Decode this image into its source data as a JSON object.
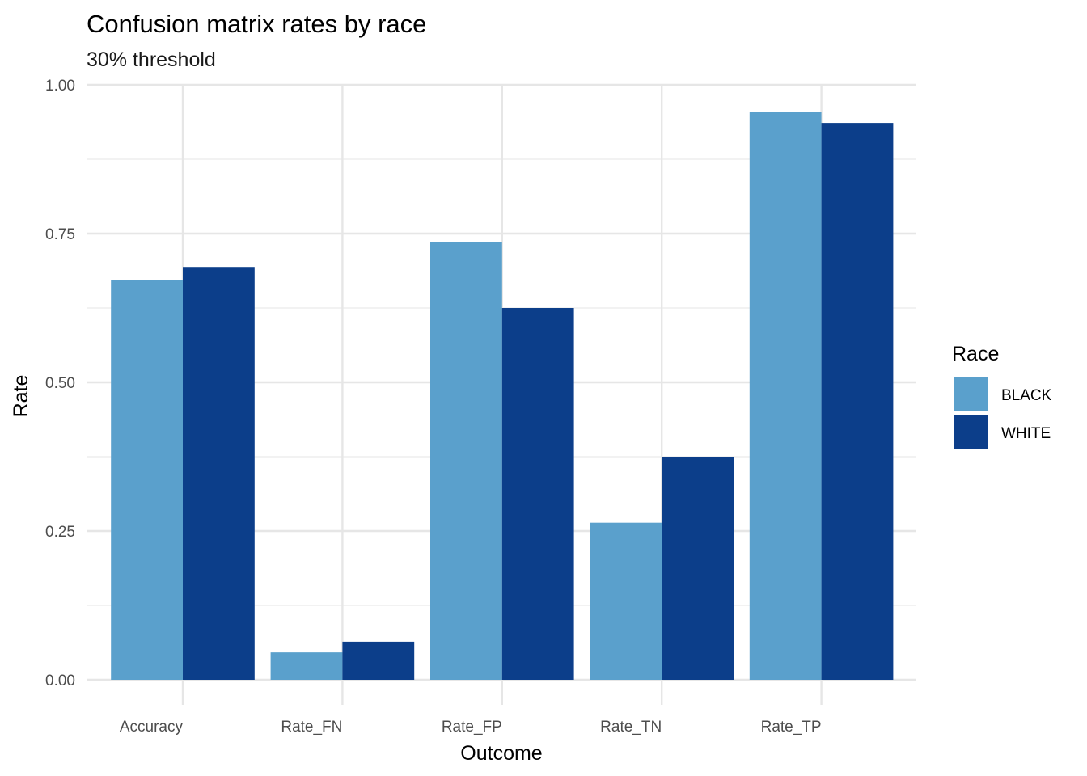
{
  "chart_data": {
    "type": "bar",
    "title": "Confusion matrix rates by race",
    "subtitle": "30% threshold",
    "xlabel": "Outcome",
    "ylabel": "Rate",
    "categories": [
      "Accuracy",
      "Rate_FN",
      "Rate_FP",
      "Rate_TN",
      "Rate_TP"
    ],
    "series": [
      {
        "name": "BLACK",
        "color": "#5aa0cc",
        "values": [
          0.672,
          0.046,
          0.736,
          0.264,
          0.954
        ]
      },
      {
        "name": "WHITE",
        "color": "#0c3e8a",
        "values": [
          0.694,
          0.064,
          0.625,
          0.375,
          0.936
        ]
      }
    ],
    "ylim": [
      0,
      1
    ],
    "yticks": [
      "0.00",
      "0.25",
      "0.50",
      "0.75",
      "1.00"
    ],
    "grid": true,
    "legend": {
      "title": "Race",
      "position": "right"
    }
  }
}
